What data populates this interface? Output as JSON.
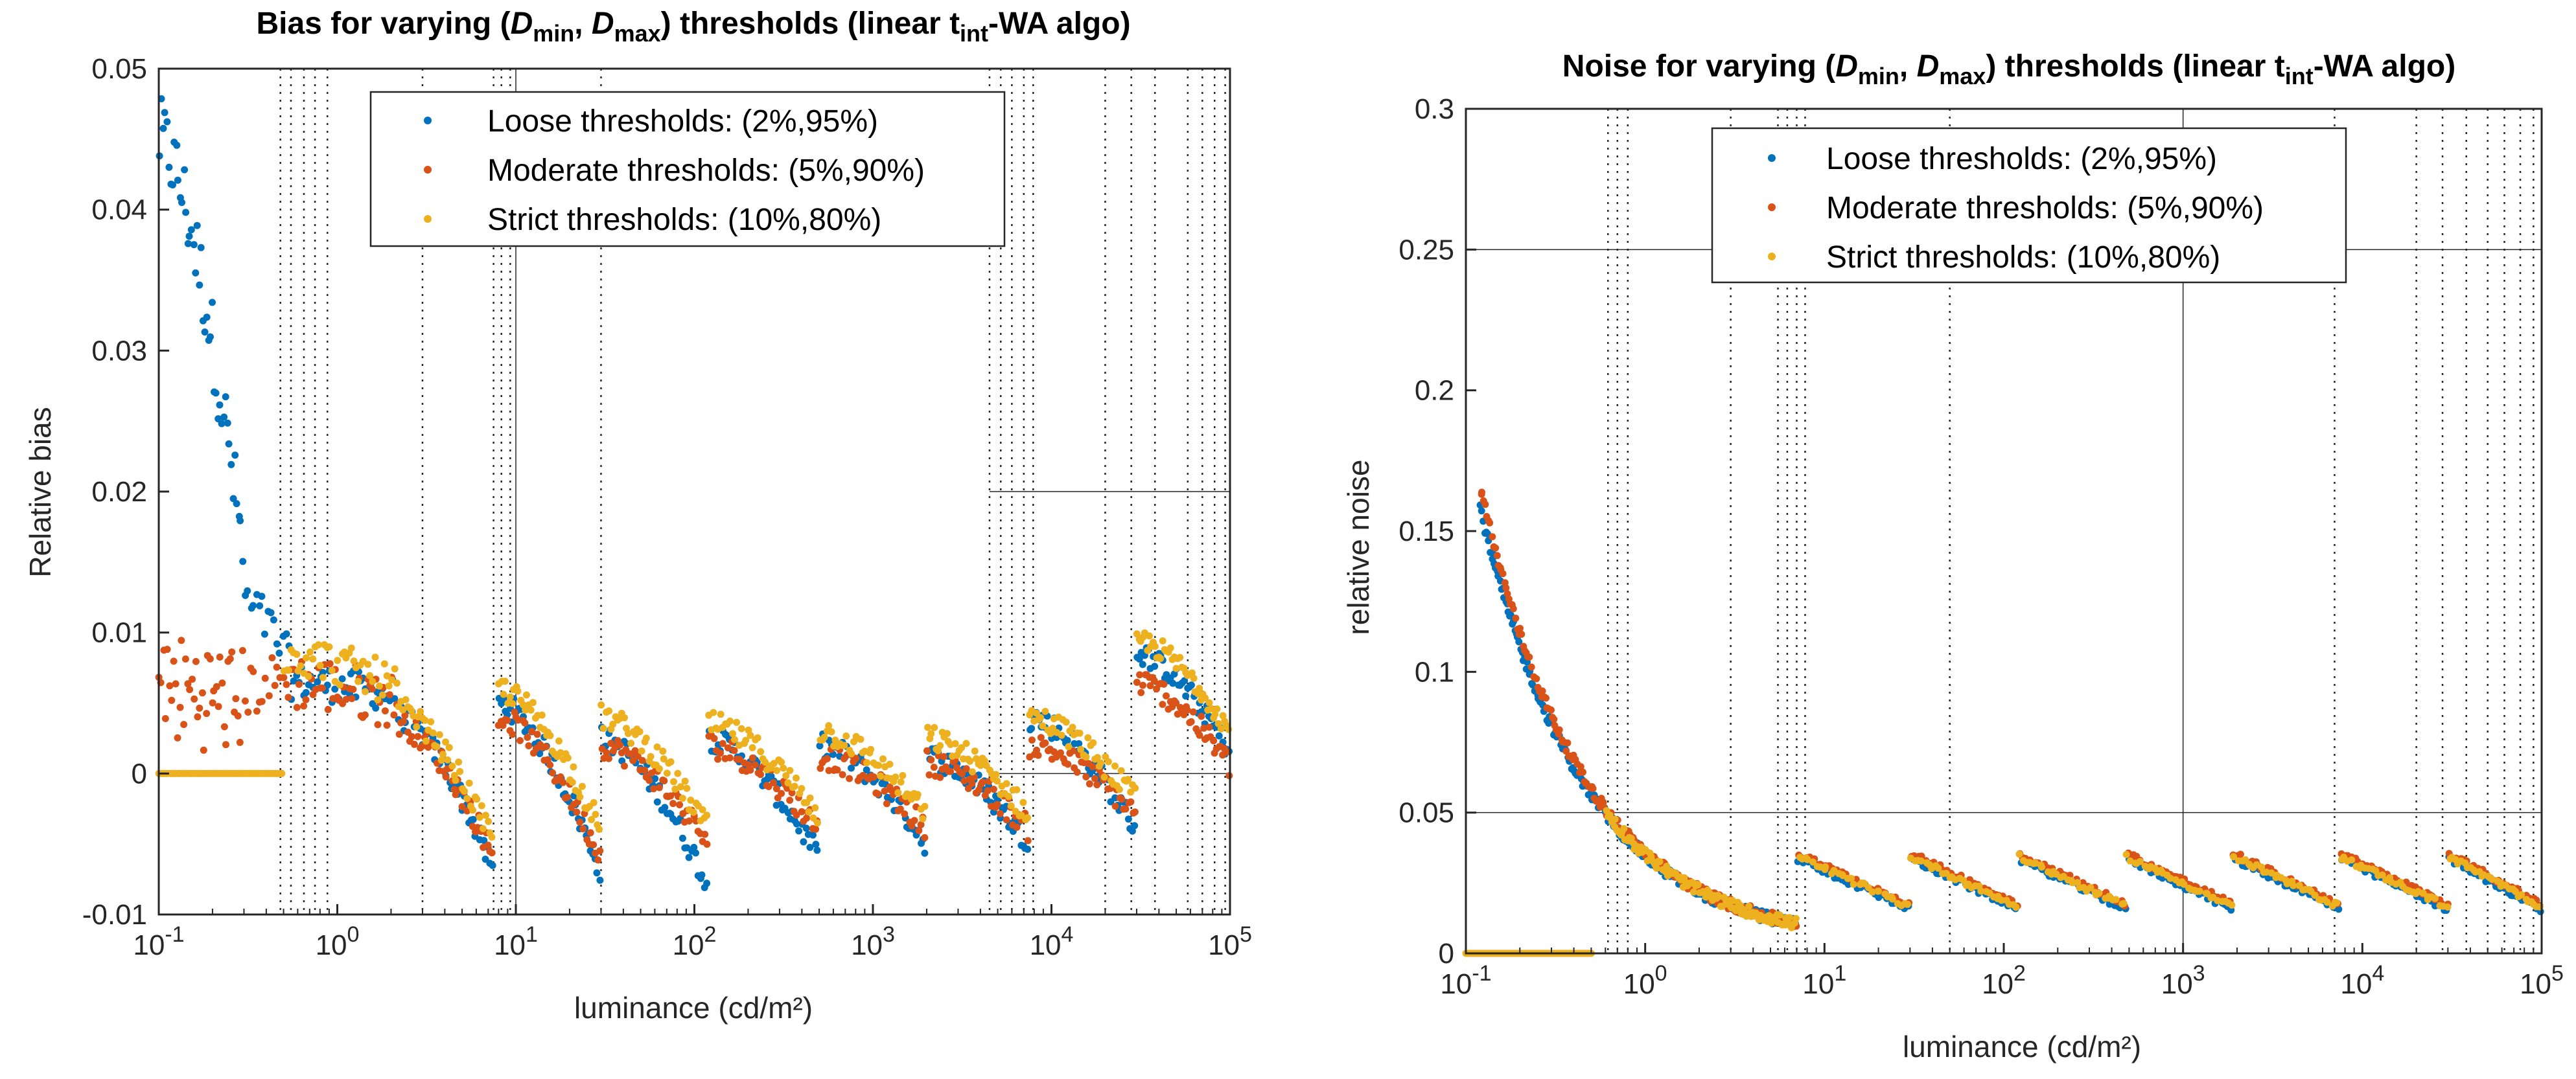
{
  "colors": {
    "loose": "#0072BD",
    "moderate": "#D95319",
    "strict": "#EDB120"
  },
  "chart_data": [
    {
      "type": "scatter",
      "title_parts": [
        "Bias for varying (",
        "D",
        "min",
        ", ",
        "D",
        "max",
        ") thresholds (linear t",
        "int",
        "-WA algo)"
      ],
      "xlabel": "luminance (cd/m²)",
      "ylabel": "Relative bias",
      "xscale": "log",
      "xlim": [
        0.1,
        100000
      ],
      "ylim": [
        -0.01,
        0.05
      ],
      "x_ticks": [
        {
          "base": "10",
          "exp": "-1",
          "value": 0.1
        },
        {
          "base": "10",
          "exp": "0",
          "value": 1
        },
        {
          "base": "10",
          "exp": "1",
          "value": 10
        },
        {
          "base": "10",
          "exp": "2",
          "value": 100
        },
        {
          "base": "10",
          "exp": "3",
          "value": 1000
        },
        {
          "base": "10",
          "exp": "4",
          "value": 10000
        },
        {
          "base": "10",
          "exp": "5",
          "value": 100000
        }
      ],
      "y_ticks": [
        {
          "label": "-0.01",
          "value": -0.01
        },
        {
          "label": "0",
          "value": 0
        },
        {
          "label": "0.01",
          "value": 0.01
        },
        {
          "label": "0.02",
          "value": 0.02
        },
        {
          "label": "0.03",
          "value": 0.03
        },
        {
          "label": "0.04",
          "value": 0.04
        },
        {
          "label": "0.05",
          "value": 0.05
        }
      ],
      "legend": {
        "location": "top-center",
        "entries": [
          "Loose thresholds: (2%,95%)",
          "Moderate thresholds: (5%,90%)",
          "Strict thresholds: (10%,80%)"
        ]
      },
      "vlines_dotted": [
        0.48,
        0.55,
        0.65,
        0.75,
        0.88,
        3,
        7.5,
        8.3,
        9.3,
        30,
        4500,
        5200,
        6000,
        7000,
        7900,
        20000,
        28000,
        38000,
        58000,
        70000,
        82000,
        94000
      ],
      "vlines_solid": [
        10
      ],
      "hlines": [
        {
          "y": 0.05,
          "x_from": 0.1,
          "x_to": 4000
        },
        {
          "y": 0.02,
          "x_from": 4500,
          "x_to": 100000
        },
        {
          "y": 0,
          "x_from": 4500,
          "x_to": 100000
        }
      ],
      "series": [
        {
          "name": "Loose thresholds: (2%,95%)",
          "color_key": "loose",
          "segments": [
            {
              "x0": 0.1,
              "x1": 0.3,
              "y0": 0.045,
              "y1": 0.015,
              "spread": 0.006,
              "n": 45
            },
            {
              "x0": 0.3,
              "x1": 0.55,
              "y0": 0.012,
              "y1": 0.0075,
              "spread": 0.0035,
              "n": 16
            },
            {
              "x0": 0.55,
              "x1": 2.2,
              "y0": 0.0065,
              "y1": 0.0055,
              "spread": 0.0025,
              "n": 45
            },
            {
              "x0": 2.2,
              "x1": 7.5,
              "y0": 0.004,
              "y1": -0.007,
              "spread": 0.0018,
              "n": 45
            },
            {
              "x0": 8,
              "x1": 30,
              "y0": 0.005,
              "y1": -0.007,
              "spread": 0.0018,
              "n": 48
            },
            {
              "x0": 30,
              "x1": 120,
              "y0": 0.0025,
              "y1": -0.008,
              "spread": 0.0018,
              "n": 48
            },
            {
              "x0": 120,
              "x1": 500,
              "y0": 0.0025,
              "y1": -0.006,
              "spread": 0.0018,
              "n": 48
            },
            {
              "x0": 500,
              "x1": 2000,
              "y0": 0.002,
              "y1": -0.005,
              "spread": 0.0018,
              "n": 48
            },
            {
              "x0": 2000,
              "x1": 7500,
              "y0": 0.0012,
              "y1": -0.005,
              "spread": 0.0018,
              "n": 48
            },
            {
              "x0": 7500,
              "x1": 30000,
              "y0": 0.004,
              "y1": -0.004,
              "spread": 0.0018,
              "n": 48
            },
            {
              "x0": 30000,
              "x1": 100000,
              "y0": 0.0085,
              "y1": 0.0015,
              "spread": 0.0016,
              "n": 48
            }
          ]
        },
        {
          "name": "Moderate thresholds: (5%,90%)",
          "color_key": "moderate",
          "segments": [
            {
              "x0": 0.1,
              "x1": 0.3,
              "y0": 0.006,
              "y1": 0.005,
              "spread": 0.008,
              "n": 42
            },
            {
              "x0": 0.3,
              "x1": 0.55,
              "y0": 0.006,
              "y1": 0.007,
              "spread": 0.004,
              "n": 16
            },
            {
              "x0": 0.55,
              "x1": 2.2,
              "y0": 0.0065,
              "y1": 0.005,
              "spread": 0.004,
              "n": 45
            },
            {
              "x0": 2.2,
              "x1": 7.5,
              "y0": 0.0035,
              "y1": -0.006,
              "spread": 0.0018,
              "n": 45
            },
            {
              "x0": 8,
              "x1": 30,
              "y0": 0.004,
              "y1": -0.006,
              "spread": 0.0018,
              "n": 48
            },
            {
              "x0": 30,
              "x1": 120,
              "y0": 0.002,
              "y1": -0.005,
              "spread": 0.0018,
              "n": 48
            },
            {
              "x0": 120,
              "x1": 500,
              "y0": 0.002,
              "y1": -0.004,
              "spread": 0.0018,
              "n": 48
            },
            {
              "x0": 500,
              "x1": 2000,
              "y0": 0.0012,
              "y1": -0.004,
              "spread": 0.0018,
              "n": 48
            },
            {
              "x0": 2000,
              "x1": 7500,
              "y0": 0.0008,
              "y1": -0.004,
              "spread": 0.0018,
              "n": 48
            },
            {
              "x0": 7500,
              "x1": 30000,
              "y0": 0.002,
              "y1": -0.003,
              "spread": 0.0018,
              "n": 48
            },
            {
              "x0": 30000,
              "x1": 100000,
              "y0": 0.0065,
              "y1": 0.0005,
              "spread": 0.0018,
              "n": 48
            }
          ]
        },
        {
          "name": "Strict thresholds: (10%,80%)",
          "color_key": "strict",
          "segments": [
            {
              "x0": 0.1,
              "x1": 0.5,
              "y0": 0,
              "y1": 0,
              "spread": 0,
              "n": 60
            },
            {
              "x0": 0.5,
              "x1": 2.2,
              "y0": 0.0085,
              "y1": 0.006,
              "spread": 0.003,
              "n": 48
            },
            {
              "x0": 2.2,
              "x1": 7.5,
              "y0": 0.0045,
              "y1": -0.005,
              "spread": 0.0018,
              "n": 45
            },
            {
              "x0": 8,
              "x1": 30,
              "y0": 0.006,
              "y1": -0.004,
              "spread": 0.0018,
              "n": 48
            },
            {
              "x0": 30,
              "x1": 120,
              "y0": 0.004,
              "y1": -0.004,
              "spread": 0.0018,
              "n": 48
            },
            {
              "x0": 120,
              "x1": 500,
              "y0": 0.0035,
              "y1": -0.003,
              "spread": 0.0018,
              "n": 48
            },
            {
              "x0": 500,
              "x1": 2000,
              "y0": 0.003,
              "y1": -0.003,
              "spread": 0.0018,
              "n": 48
            },
            {
              "x0": 2000,
              "x1": 7500,
              "y0": 0.0025,
              "y1": -0.003,
              "spread": 0.0018,
              "n": 48
            },
            {
              "x0": 7500,
              "x1": 30000,
              "y0": 0.004,
              "y1": -0.002,
              "spread": 0.0018,
              "n": 48
            },
            {
              "x0": 30000,
              "x1": 100000,
              "y0": 0.0095,
              "y1": 0.003,
              "spread": 0.0016,
              "n": 48
            }
          ]
        }
      ]
    },
    {
      "type": "scatter",
      "title_parts": [
        "Noise for varying (",
        "D",
        "min",
        ", ",
        "D",
        "max",
        ") thresholds (linear t",
        "int",
        "-WA algo)"
      ],
      "xlabel": "luminance (cd/m²)",
      "ylabel": "relative noise",
      "xscale": "log",
      "xlim": [
        0.1,
        100000
      ],
      "ylim": [
        0,
        0.3
      ],
      "x_ticks": [
        {
          "base": "10",
          "exp": "-1",
          "value": 0.1
        },
        {
          "base": "10",
          "exp": "0",
          "value": 1
        },
        {
          "base": "10",
          "exp": "1",
          "value": 10
        },
        {
          "base": "10",
          "exp": "2",
          "value": 100
        },
        {
          "base": "10",
          "exp": "3",
          "value": 1000
        },
        {
          "base": "10",
          "exp": "4",
          "value": 10000
        },
        {
          "base": "10",
          "exp": "5",
          "value": 100000
        }
      ],
      "y_ticks": [
        {
          "label": "0",
          "value": 0
        },
        {
          "label": "0.05",
          "value": 0.05
        },
        {
          "label": "0.1",
          "value": 0.1
        },
        {
          "label": "0.15",
          "value": 0.15
        },
        {
          "label": "0.2",
          "value": 0.2
        },
        {
          "label": "0.25",
          "value": 0.25
        },
        {
          "label": "0.3",
          "value": 0.3
        }
      ],
      "legend": {
        "location": "top-center",
        "entries": [
          "Loose thresholds: (2%,95%)",
          "Moderate thresholds: (5%,90%)",
          "Strict thresholds: (10%,80%)"
        ]
      },
      "vlines_dotted": [
        0.62,
        0.7,
        0.8,
        3,
        5.5,
        6.2,
        7,
        7.8,
        50,
        7000,
        20000,
        28000,
        38000,
        50000,
        62000,
        76000,
        90000
      ],
      "vlines_solid": [
        1000
      ],
      "hlines": [
        {
          "y": 0.25,
          "x_from": 0.1,
          "x_to": 100000
        },
        {
          "y": 0.05,
          "x_from": 0.1,
          "x_to": 100000
        }
      ],
      "series": [
        {
          "name": "Loose thresholds: (2%,95%)",
          "color_key": "loose",
          "model": "noise",
          "offset": -0.0015,
          "start": 0.12,
          "n_main": 230
        },
        {
          "name": "Moderate thresholds: (5%,90%)",
          "color_key": "moderate",
          "model": "noise",
          "offset": 0.006,
          "start": 0.12,
          "n_main": 200
        },
        {
          "name": "Strict thresholds: (10%,80%)",
          "color_key": "strict",
          "model": "noise",
          "offset": 0.002,
          "start": 0.6,
          "n_main": 120,
          "zero_segment": [
            0.1,
            0.5
          ]
        }
      ],
      "noise_segments": [
        [
          7,
          30
        ],
        [
          30,
          120
        ],
        [
          120,
          480
        ],
        [
          480,
          1900
        ],
        [
          1900,
          7500
        ],
        [
          7500,
          30000
        ],
        [
          30000,
          100000
        ]
      ],
      "noise_segment_range": [
        0.034,
        0.016
      ]
    }
  ]
}
